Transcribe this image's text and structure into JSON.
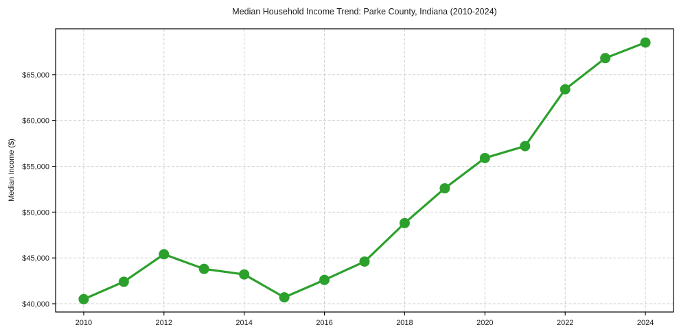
{
  "window": {
    "title": "Median Household Income Trend: Parke County, Indiana (2010-2024)"
  },
  "chart_data": {
    "type": "line",
    "title": "Median Household Income Trend: Parke County, Indiana (2010-2024)",
    "xlabel": "",
    "ylabel": "Median Income ($)",
    "x": [
      2010,
      2011,
      2012,
      2013,
      2014,
      2015,
      2016,
      2017,
      2018,
      2019,
      2020,
      2021,
      2022,
      2023,
      2024
    ],
    "series": [
      {
        "name": "Median Household Income",
        "values": [
          40500,
          42400,
          45400,
          43800,
          43200,
          40700,
          42600,
          44600,
          48800,
          52600,
          55900,
          57200,
          63400,
          66800,
          68500
        ],
        "color": "#2ca02c",
        "marker": "circle"
      }
    ],
    "x_ticks": [
      2010,
      2012,
      2014,
      2016,
      2018,
      2020,
      2022,
      2024
    ],
    "x_tick_labels": [
      "2010",
      "2012",
      "2014",
      "2016",
      "2018",
      "2020",
      "2022",
      "2024"
    ],
    "y_ticks": [
      40000,
      45000,
      50000,
      55000,
      60000,
      65000
    ],
    "y_tick_labels": [
      "$40,000",
      "$45,000",
      "$50,000",
      "$55,000",
      "$60,000",
      "$65,000"
    ],
    "xlim": [
      2009.3,
      2024.7
    ],
    "ylim": [
      39100,
      70000
    ],
    "grid": true,
    "grid_style": "dashed",
    "legend": null,
    "colors": {
      "line": "#2ca02c",
      "grid": "#cccccc",
      "axis": "#000000",
      "text": "#1a1a1a",
      "background": "#ffffff"
    }
  }
}
